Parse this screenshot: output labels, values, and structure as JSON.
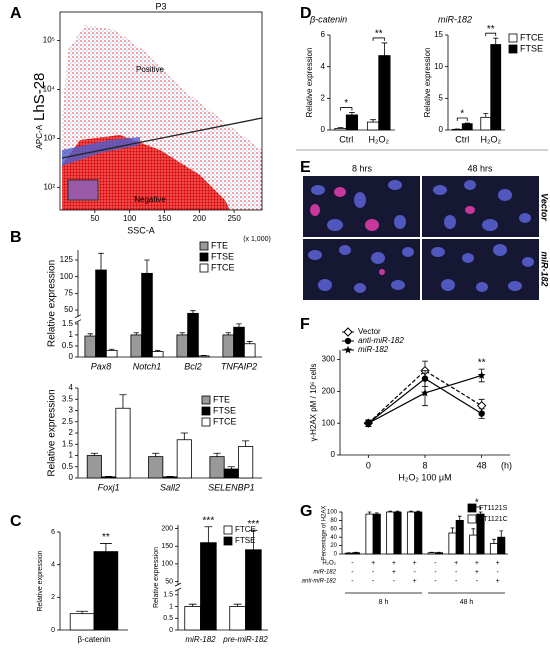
{
  "chart_data": [
    {
      "type": "flow",
      "label": "A",
      "title": "P3",
      "ylabel": [
        "APC-A",
        "LhS-28"
      ],
      "xlabel": "SSC-A",
      "xunit": "(x 1,000)",
      "regions": [
        "Positive",
        "Negative"
      ],
      "xlim": [
        0,
        290
      ],
      "xticks": [
        50,
        100,
        150,
        200,
        250
      ],
      "ylim": [
        35,
        380000
      ],
      "ylog": true,
      "yticks": [
        {
          "value": 100,
          "label": "10²"
        },
        {
          "value": 1000,
          "label": "10³"
        },
        {
          "value": 10000,
          "label": "10⁴"
        },
        {
          "value": 100000,
          "label": "10⁵"
        }
      ]
    },
    {
      "type": "bar",
      "label": "B",
      "ylabel": "Relative expression",
      "category_style": "italic",
      "categories": [
        "Pax8",
        "Notch1",
        "Bcl2",
        "TNFAIP2"
      ],
      "series": [
        {
          "name": "FTE",
          "color": "#999999",
          "values": [
            0.95,
            1.0,
            1.0,
            1.0
          ],
          "errors": [
            0.1,
            0.1,
            0.1,
            0.1
          ]
        },
        {
          "name": "FTSE",
          "color": "#000000",
          "values": [
            110,
            105,
            45,
            1.35
          ],
          "errors": [
            25,
            20,
            4,
            0.15
          ]
        },
        {
          "name": "FTCE",
          "color": "#ffffff",
          "values": [
            0.3,
            0.25,
            0.05,
            0.6
          ],
          "errors": [
            0.05,
            0.05,
            0.02,
            0.1
          ]
        }
      ],
      "ylim": [
        0,
        140
      ],
      "ybreak": [
        1.6,
        40
      ],
      "yticks": [
        0,
        0.5,
        1,
        1.5,
        50,
        75,
        100,
        125
      ]
    },
    {
      "type": "bar",
      "ylabel": "Relative expression",
      "category_style": "italic",
      "categories": [
        "Foxj1",
        "Sall2",
        "SELENBP1"
      ],
      "series": [
        {
          "name": "FTE",
          "color": "#999999",
          "values": [
            1.0,
            0.95,
            0.95
          ],
          "errors": [
            0.1,
            0.15,
            0.15
          ]
        },
        {
          "name": "FTSE",
          "color": "#000000",
          "values": [
            0.05,
            0.05,
            0.4
          ],
          "errors": [
            0.02,
            0.02,
            0.1
          ]
        },
        {
          "name": "FTCE",
          "color": "#ffffff",
          "values": [
            3.1,
            1.7,
            1.4
          ],
          "errors": [
            0.6,
            0.3,
            0.25
          ]
        }
      ],
      "ylim": [
        0,
        4
      ],
      "yticks": [
        0,
        0.5,
        1,
        1.5,
        2,
        2.5,
        3,
        3.5,
        4
      ]
    },
    {
      "type": "bar",
      "label": "C",
      "ylabel": "Relative expression",
      "categories": [
        "β-catenin"
      ],
      "series": [
        {
          "color": "#ffffff",
          "values": [
            1.0
          ],
          "errors": [
            0.15
          ]
        },
        {
          "color": "#000000",
          "values": [
            4.8
          ],
          "errors": [
            0.5
          ]
        }
      ],
      "ylim": [
        0,
        6
      ],
      "yticks": [
        0,
        2,
        4,
        6
      ],
      "significance": [
        "**"
      ]
    },
    {
      "type": "bar",
      "ylabel": "Relative expression",
      "category_style": "italic",
      "categories": [
        "miR-182",
        "pre-miR-182"
      ],
      "series": [
        {
          "name": "FTCE",
          "color": "#ffffff",
          "values": [
            1.0,
            1.0
          ],
          "errors": [
            0.1,
            0.1
          ]
        },
        {
          "name": "FTSE",
          "color": "#000000",
          "values": [
            160,
            140
          ],
          "errors": [
            45,
            55
          ]
        }
      ],
      "ylim": [
        0,
        210
      ],
      "ybreak": [
        1.7,
        40
      ],
      "yticks": [
        0,
        0.5,
        1,
        1.5,
        50,
        100,
        150,
        200
      ],
      "significance": [
        "***",
        "***"
      ]
    },
    {
      "type": "bar",
      "label": "D",
      "title": "β-catenin",
      "ylabel": "Relative expression",
      "categories": [
        "Ctrl",
        "H₂O₂"
      ],
      "series": [
        {
          "color": "#ffffff",
          "values": [
            0.1,
            0.5
          ],
          "errors": [
            0.05,
            0.15
          ]
        },
        {
          "color": "#000000",
          "values": [
            0.95,
            4.7
          ],
          "errors": [
            0.15,
            0.8
          ]
        }
      ],
      "ylim": [
        0,
        6
      ],
      "yticks": [
        0,
        2,
        4,
        6
      ],
      "significance": [
        "*",
        "**"
      ],
      "bracket": true
    },
    {
      "type": "bar",
      "title": "miR-182",
      "ylabel": "Relative expression",
      "categories": [
        "Ctrl",
        "H₂O₂"
      ],
      "series": [
        {
          "name": "FTCE",
          "color": "#ffffff",
          "values": [
            0.1,
            2
          ],
          "errors": [
            0.05,
            0.6
          ]
        },
        {
          "name": "FTSE",
          "color": "#000000",
          "values": [
            1.0,
            13.5
          ],
          "errors": [
            0.1,
            1.0
          ]
        }
      ],
      "ylim": [
        0,
        15
      ],
      "yticks": [
        0,
        5,
        10,
        15
      ],
      "significance": [
        "*",
        "**"
      ],
      "bracket": true
    },
    {
      "type": "image",
      "label": "E",
      "columns": [
        "8 hrs",
        "48 hrs"
      ],
      "rows": [
        "Vector",
        "miR-182"
      ]
    },
    {
      "type": "line",
      "label": "F",
      "ylabel": "γ-H2AX pM / 10⁶ cells",
      "xlabel": "H₂O₂ 100 μM",
      "xunit": "(h)",
      "categories": [
        "0",
        "8",
        "48"
      ],
      "series": [
        {
          "name": "Vector",
          "color": "#000000",
          "marker": "diamond",
          "dash": true,
          "values": [
            100,
            265,
            155
          ],
          "errors": [
            10,
            30,
            20
          ]
        },
        {
          "name": "anti-miR-182",
          "color": "#000000",
          "marker": "circle",
          "values": [
            100,
            240,
            130
          ],
          "errors": [
            10,
            25,
            15
          ]
        },
        {
          "name": "miR-182",
          "color": "#000000",
          "marker": "star",
          "values": [
            100,
            195,
            250
          ],
          "errors": [
            10,
            40,
            20
          ]
        }
      ],
      "ylim": [
        0,
        330
      ],
      "yticks": [
        0,
        100,
        200,
        300
      ],
      "significance": [
        null,
        null,
        "**"
      ]
    },
    {
      "type": "bar",
      "label": "G",
      "ylabel": "Percentage of H2AX",
      "categories": [
        null,
        null,
        null,
        null,
        null,
        null,
        null,
        null
      ],
      "series": [
        {
          "name": "FT1121C",
          "color": "#ffffff",
          "values": [
            2,
            95,
            100,
            100,
            3,
            50,
            45,
            25
          ],
          "errors": [
            1,
            5,
            2,
            2,
            1,
            12,
            15,
            10
          ]
        },
        {
          "name": "FT1121S",
          "color": "#000000",
          "values": [
            3,
            95,
            100,
            100,
            3,
            80,
            95,
            40
          ],
          "errors": [
            1,
            3,
            2,
            2,
            1,
            10,
            5,
            15
          ]
        }
      ],
      "legend_reverse": true,
      "ylim": [
        0,
        100
      ],
      "yticks": [
        0,
        20,
        40,
        60,
        80,
        100
      ],
      "significance": [
        null,
        null,
        null,
        null,
        null,
        null,
        "*",
        null
      ],
      "bracket": true,
      "treatments": [
        {
          "name": "H₂O₂",
          "signs": [
            "-",
            "+",
            "+",
            "+",
            "-",
            "+",
            "+",
            "+"
          ]
        },
        {
          "name": "miR-182",
          "signs": [
            "-",
            "-",
            "+",
            "-",
            "-",
            "-",
            "+",
            "-"
          ]
        },
        {
          "name": "anti-miR-182",
          "signs": [
            "-",
            "-",
            "-",
            "+",
            "-",
            "-",
            "-",
            "+"
          ]
        }
      ],
      "periods": [
        "8 h",
        "48 h"
      ]
    }
  ]
}
